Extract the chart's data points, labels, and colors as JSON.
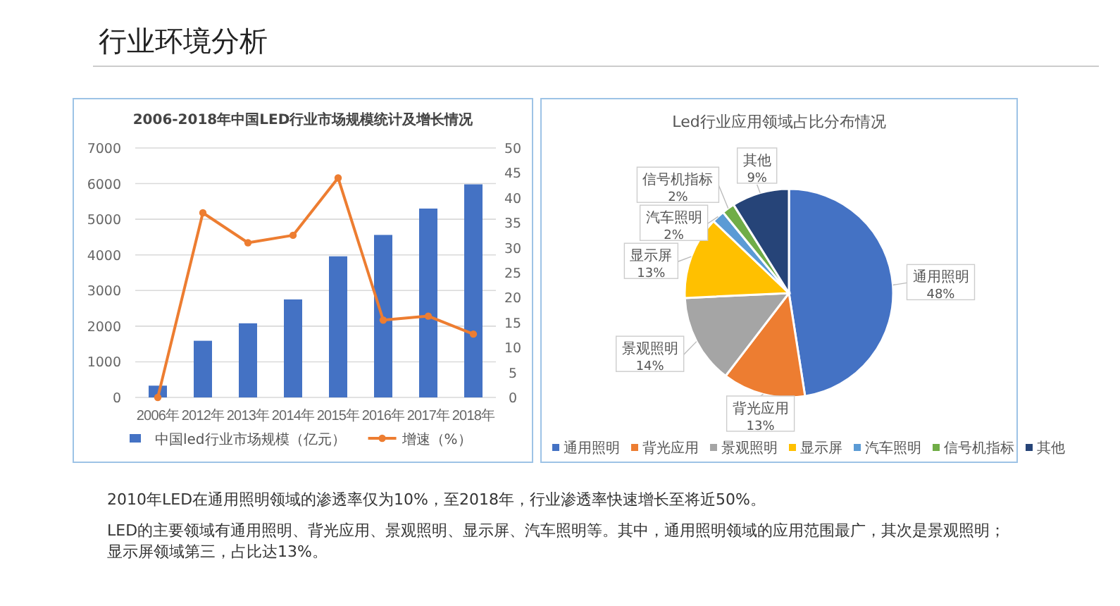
{
  "chart_data": [
    {
      "type": "other",
      "title": "行业环境分析",
      "annotations": [
        "2010年LED在通用照明领域的渗透率仅为10%，至2018年，行业渗透率快速增长至将近50%。",
        "LED的主要领域有通用照明、背光应用、景观照明、显示屏、汽车照明等。其中，通用照明领域的应用范围最广，其次是景观照明；显示屏领域第三，占比达13%。"
      ]
    },
    {
      "type": "bar",
      "title": "2006-2018年中国LED行业市场规模统计及增长情况",
      "categories": [
        "2006年",
        "2012年",
        "2013年",
        "2014年",
        "2015年",
        "2016年",
        "2017年",
        "2018年"
      ],
      "series": [
        {
          "name": "中国led行业市场规模（亿元）",
          "color": "#4472c4",
          "values": [
            330,
            1590,
            2080,
            2750,
            3960,
            4560,
            5300,
            5980
          ]
        },
        {
          "name": "增速（%）",
          "type": "line",
          "axis": "y2",
          "color": "#ed7d31",
          "marker": "circle",
          "values": [
            0,
            37,
            31,
            32.5,
            44,
            15.5,
            16.3,
            12.7
          ]
        }
      ],
      "ylim": [
        0,
        7000
      ],
      "yticks": [
        0,
        1000,
        2000,
        3000,
        4000,
        5000,
        6000,
        7000
      ],
      "y2lim": [
        0,
        50
      ],
      "y2ticks": [
        0,
        5,
        10,
        15,
        20,
        25,
        30,
        35,
        40,
        45,
        50
      ],
      "grid": "y",
      "legend": "bottom"
    },
    {
      "type": "pie",
      "title": "Led行业应用领域占比分布情况",
      "categories": [
        "通用照明",
        "背光应用",
        "景观照明",
        "显示屏",
        "汽车照明",
        "信号机指标",
        "其他"
      ],
      "values": [
        48,
        13,
        14,
        13,
        2,
        2,
        9
      ],
      "colors": [
        "#4472c4",
        "#ed7d31",
        "#a5a5a5",
        "#ffc000",
        "#5b9bd5",
        "#70ad47",
        "#264478"
      ],
      "value_labels": [
        "48%",
        "13%",
        "14%",
        "13%",
        "2%",
        "2%",
        "9%"
      ],
      "legend": "bottom"
    }
  ]
}
